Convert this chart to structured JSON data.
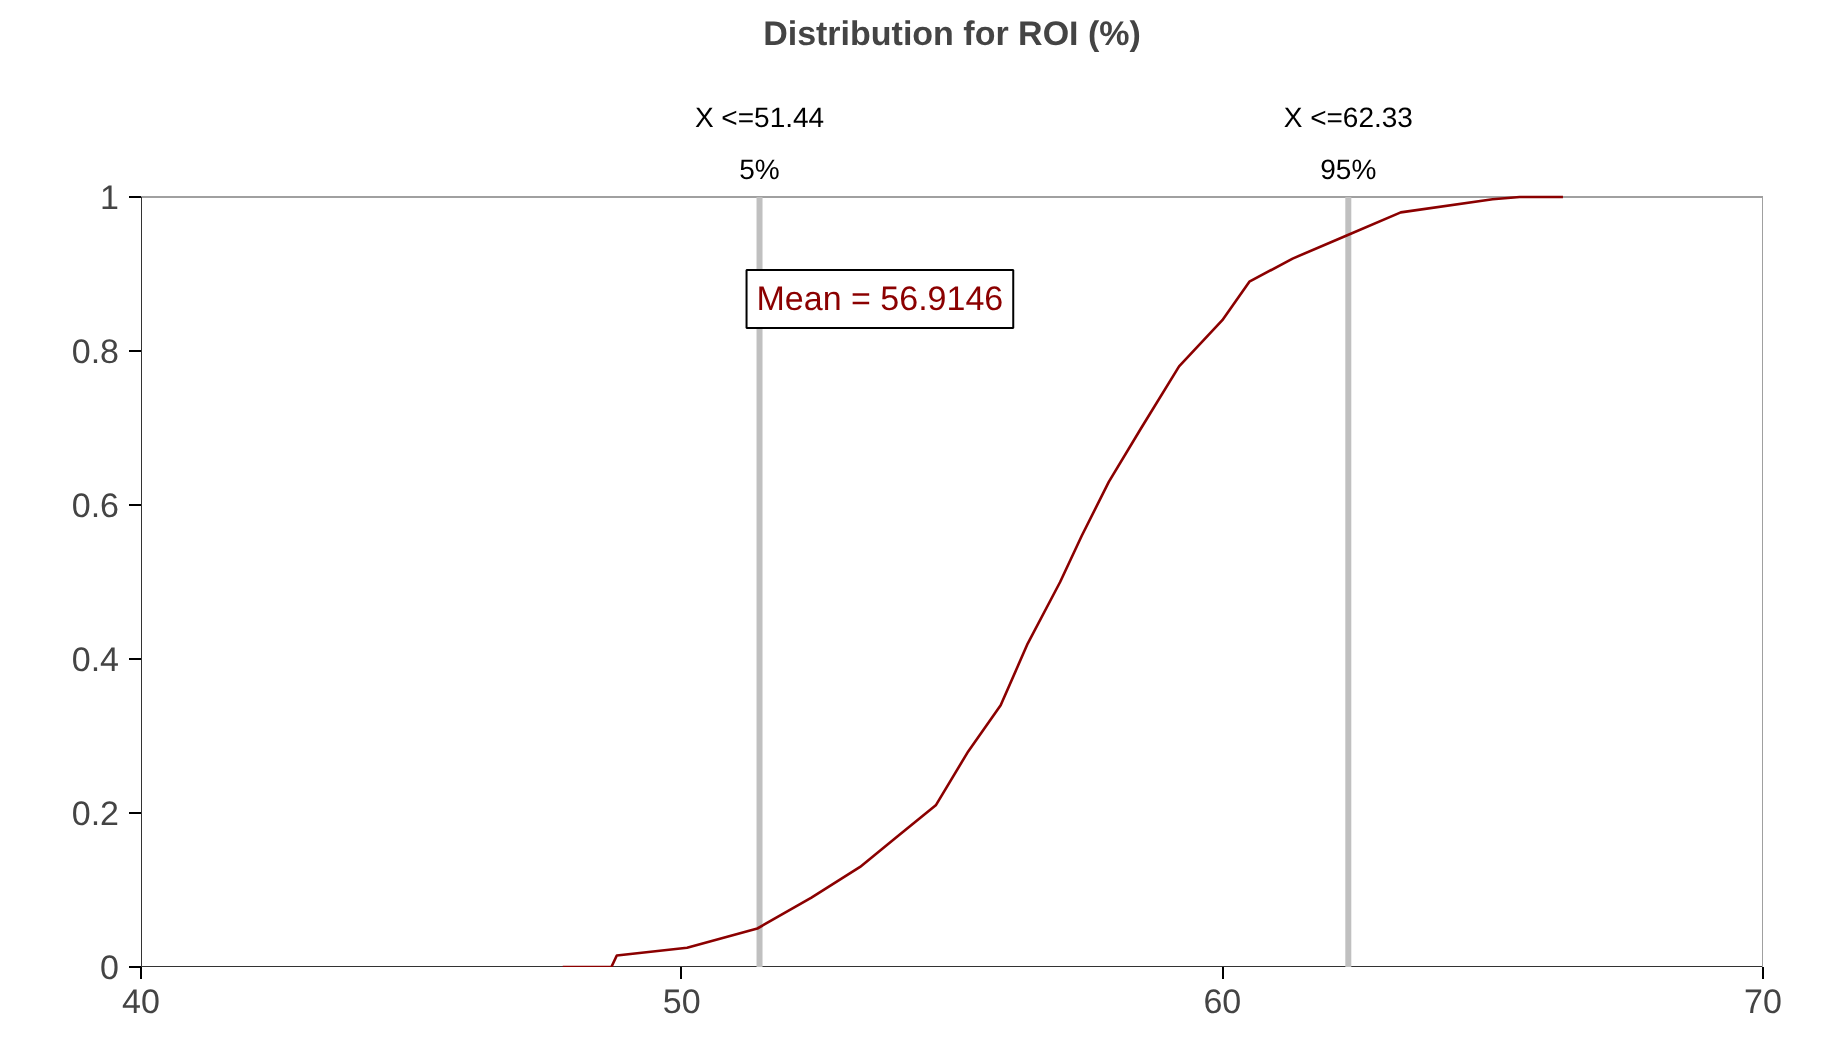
{
  "chart_data": {
    "type": "line",
    "title": "Distribution for ROI (%)",
    "x": [
      47.8,
      48.7,
      48.8,
      50.1,
      51.4,
      52.4,
      53.3,
      54.0,
      54.7,
      55.3,
      55.9,
      56.4,
      57.0,
      57.4,
      57.9,
      58.5,
      59.2,
      60.0,
      60.5,
      61.3,
      62.3,
      63.3,
      65.0,
      65.5,
      66.3
    ],
    "series": [
      {
        "color": "#8b0000",
        "values": [
          0.0,
          0.0,
          0.015,
          0.025,
          0.05,
          0.09,
          0.13,
          0.17,
          0.21,
          0.28,
          0.34,
          0.42,
          0.5,
          0.56,
          0.63,
          0.7,
          0.78,
          0.84,
          0.89,
          0.92,
          0.95,
          0.98,
          0.997,
          1.0,
          1.0
        ]
      }
    ],
    "xlim": [
      40,
      70
    ],
    "xticks": [
      40,
      50,
      60,
      70
    ],
    "ylim": [
      0,
      1
    ],
    "yticks": [
      0,
      0.2,
      0.4,
      0.6,
      0.8,
      {
        "value": 1,
        "label": "1"
      }
    ],
    "grid": false,
    "line_style": "solid",
    "marker": "none",
    "ref_lines": [
      {
        "axis": "x",
        "value": 51.44,
        "label": "X <=51.44",
        "color": "#c0c0c0"
      },
      {
        "axis": "x",
        "value": 62.33,
        "label": "X <=62.33",
        "color": "#c0c0c0"
      }
    ],
    "annotations": [
      {
        "text": "5%",
        "x": 51.44,
        "y": 1
      },
      {
        "text": "95%",
        "x": 62.33,
        "y": 1
      },
      "Mean = 56.9146"
    ]
  }
}
